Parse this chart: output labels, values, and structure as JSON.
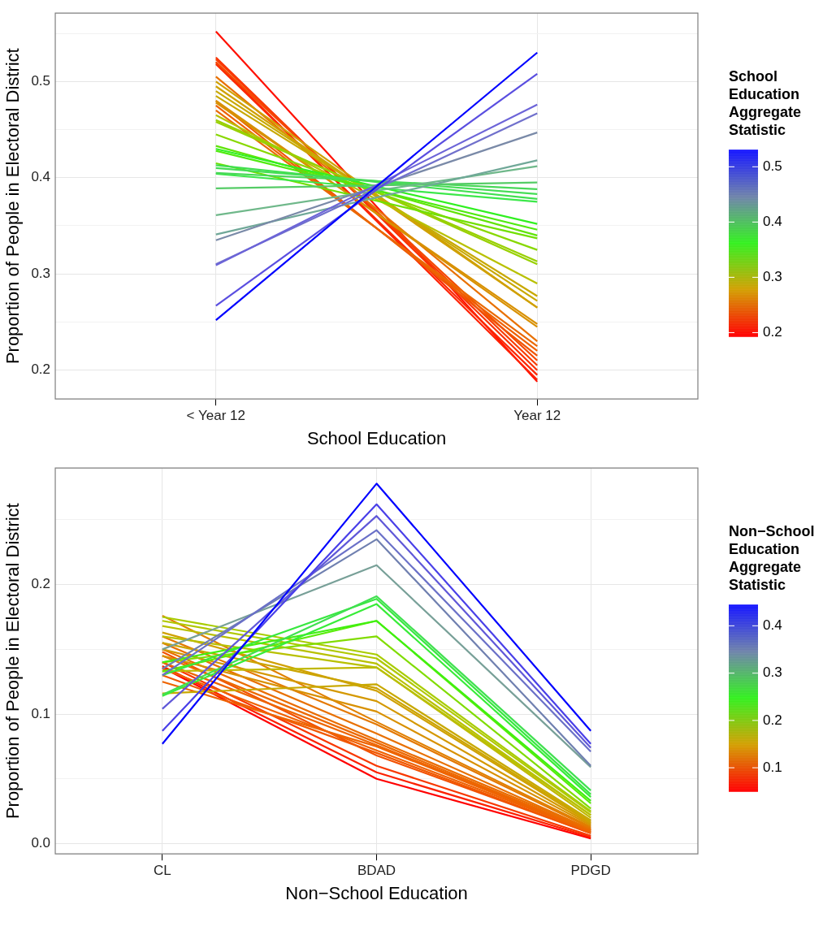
{
  "chart_data": [
    {
      "type": "line",
      "xlabel": "School Education",
      "ylabel": "Proportion of People in Electoral District",
      "clabel": "School Education Aggregate Statistic",
      "clim": [
        0.193,
        0.531
      ],
      "cticks": [
        0.2,
        0.3,
        0.4,
        0.5
      ],
      "categories": [
        "< Year 12",
        "Year 12"
      ],
      "ylim": [
        0.17,
        0.571
      ],
      "yticks": [
        0.2,
        {
          "value": 0.25,
          "label": null
        },
        0.3,
        {
          "value": 0.35,
          "label": null
        },
        0.4,
        {
          "value": 0.45,
          "label": null
        },
        0.5,
        {
          "value": 0.55,
          "label": null
        }
      ],
      "grid": true,
      "legend": false,
      "series": [
        {
          "color": "#0000ff",
          "values": [
            0.252,
            0.53
          ]
        },
        {
          "color": "#5a4ee0",
          "values": [
            0.267,
            0.508
          ]
        },
        {
          "color": "#6c64d8",
          "values": [
            0.309,
            0.476
          ]
        },
        {
          "color": "#7070cc",
          "values": [
            0.31,
            0.467
          ]
        },
        {
          "color": "#7a8aa8",
          "values": [
            0.335,
            0.447
          ]
        },
        {
          "color": "#70a898",
          "values": [
            0.341,
            0.418
          ]
        },
        {
          "color": "#6fb88a",
          "values": [
            0.361,
            0.412
          ]
        },
        {
          "color": "#55cc66",
          "values": [
            0.389,
            0.395
          ]
        },
        {
          "color": "#48d858",
          "values": [
            0.405,
            0.388
          ]
        },
        {
          "color": "#44dd55",
          "values": [
            0.41,
            0.383
          ]
        },
        {
          "color": "#40e050",
          "values": [
            0.413,
            0.378
          ]
        },
        {
          "color": "#3ce84a",
          "values": [
            0.404,
            0.375
          ]
        },
        {
          "color": "#30f020",
          "values": [
            0.43,
            0.352
          ]
        },
        {
          "color": "#50ea10",
          "values": [
            0.428,
            0.346
          ]
        },
        {
          "color": "#60e408",
          "values": [
            0.433,
            0.34
          ]
        },
        {
          "color": "#70e000",
          "values": [
            0.415,
            0.337
          ]
        },
        {
          "color": "#88d800",
          "values": [
            0.445,
            0.325
          ]
        },
        {
          "color": "#98d000",
          "values": [
            0.458,
            0.313
          ]
        },
        {
          "color": "#98d000",
          "values": [
            0.46,
            0.31
          ]
        },
        {
          "color": "#b8c000",
          "values": [
            0.465,
            0.29
          ]
        },
        {
          "color": "#c8a800",
          "values": [
            0.485,
            0.277
          ]
        },
        {
          "color": "#c8a800",
          "values": [
            0.49,
            0.272
          ]
        },
        {
          "color": "#d0a000",
          "values": [
            0.495,
            0.265
          ]
        },
        {
          "color": "#d0a000",
          "values": [
            0.5,
            0.265
          ]
        },
        {
          "color": "#d89000",
          "values": [
            0.478,
            0.248
          ]
        },
        {
          "color": "#d89000",
          "values": [
            0.48,
            0.245
          ]
        },
        {
          "color": "#e87000",
          "values": [
            0.505,
            0.23
          ]
        },
        {
          "color": "#ea6800",
          "values": [
            0.47,
            0.225
          ]
        },
        {
          "color": "#ee6000",
          "values": [
            0.475,
            0.22
          ]
        },
        {
          "color": "#f05400",
          "values": [
            0.48,
            0.215
          ]
        },
        {
          "color": "#f44800",
          "values": [
            0.52,
            0.21
          ]
        },
        {
          "color": "#f83c00",
          "values": [
            0.523,
            0.205
          ]
        },
        {
          "color": "#fa3000",
          "values": [
            0.525,
            0.2
          ]
        },
        {
          "color": "#fc2800",
          "values": [
            0.518,
            0.195
          ]
        },
        {
          "color": "#ff2000",
          "values": [
            0.52,
            0.19
          ]
        },
        {
          "color": "#ff1000",
          "values": [
            0.552,
            0.188
          ]
        }
      ]
    },
    {
      "type": "line",
      "xlabel": "Non−School Education",
      "ylabel": "Proportion of People in Electoral District",
      "clabel": "Non−School Education Aggregate Statistic",
      "clim": [
        0.05,
        0.445
      ],
      "cticks": [
        0.1,
        0.2,
        0.3,
        0.4
      ],
      "categories": [
        "CL",
        "BDAD",
        "PDGD"
      ],
      "ylim": [
        -0.008,
        0.29
      ],
      "yticks": [
        {
          "value": 0,
          "label": "0.0"
        },
        {
          "value": 0.05,
          "label": null
        },
        0.1,
        {
          "value": 0.15,
          "label": null
        },
        0.2,
        {
          "value": 0.25,
          "label": null
        }
      ],
      "grid": true,
      "legend": false,
      "series": [
        {
          "color": "#0000ff",
          "values": [
            0.077,
            0.278,
            0.087
          ]
        },
        {
          "color": "#4a40e8",
          "values": [
            0.087,
            0.262,
            0.077
          ]
        },
        {
          "color": "#6058d8",
          "values": [
            0.104,
            0.253,
            0.074
          ]
        },
        {
          "color": "#6a70c8",
          "values": [
            0.13,
            0.242,
            0.071
          ]
        },
        {
          "color": "#7080b0",
          "values": [
            0.135,
            0.235,
            0.06
          ]
        },
        {
          "color": "#78a098",
          "values": [
            0.15,
            0.215,
            0.059
          ]
        },
        {
          "color": "#40e050",
          "values": [
            0.115,
            0.191,
            0.041
          ]
        },
        {
          "color": "#38e840",
          "values": [
            0.13,
            0.189,
            0.038
          ]
        },
        {
          "color": "#38ec38",
          "values": [
            0.114,
            0.185,
            0.036
          ]
        },
        {
          "color": "#40f010",
          "values": [
            0.14,
            0.172,
            0.033
          ]
        },
        {
          "color": "#58ec08",
          "values": [
            0.133,
            0.172,
            0.031
          ]
        },
        {
          "color": "#80dc00",
          "values": [
            0.14,
            0.16,
            0.027
          ]
        },
        {
          "color": "#a8cc00",
          "values": [
            0.175,
            0.146,
            0.025
          ]
        },
        {
          "color": "#b0c800",
          "values": [
            0.172,
            0.143,
            0.024
          ]
        },
        {
          "color": "#b8c000",
          "values": [
            0.168,
            0.139,
            0.022
          ]
        },
        {
          "color": "#b8c000",
          "values": [
            0.16,
            0.136,
            0.022
          ]
        },
        {
          "color": "#c0b800",
          "values": [
            0.133,
            0.136,
            0.02
          ]
        },
        {
          "color": "#c8a800",
          "values": [
            0.116,
            0.123,
            0.018
          ]
        },
        {
          "color": "#cca400",
          "values": [
            0.155,
            0.12,
            0.017
          ]
        },
        {
          "color": "#d0a000",
          "values": [
            0.163,
            0.118,
            0.016
          ]
        },
        {
          "color": "#d49800",
          "values": [
            0.15,
            0.11,
            0.015
          ]
        },
        {
          "color": "#d89000",
          "values": [
            0.145,
            0.102,
            0.014
          ]
        },
        {
          "color": "#e08000",
          "values": [
            0.176,
            0.094,
            0.013
          ]
        },
        {
          "color": "#e47800",
          "values": [
            0.16,
            0.092,
            0.012
          ]
        },
        {
          "color": "#e87000",
          "values": [
            0.155,
            0.085,
            0.011
          ]
        },
        {
          "color": "#ea6c00",
          "values": [
            0.15,
            0.08,
            0.011
          ]
        },
        {
          "color": "#ec6800",
          "values": [
            0.145,
            0.078,
            0.01
          ]
        },
        {
          "color": "#ee6400",
          "values": [
            0.14,
            0.076,
            0.01
          ]
        },
        {
          "color": "#ee6400",
          "values": [
            0.125,
            0.075,
            0.009
          ]
        },
        {
          "color": "#f06000",
          "values": [
            0.135,
            0.072,
            0.009
          ]
        },
        {
          "color": "#f05800",
          "values": [
            0.13,
            0.07,
            0.008
          ]
        },
        {
          "color": "#f25000",
          "values": [
            0.148,
            0.068,
            0.008
          ]
        },
        {
          "color": "#f83800",
          "values": [
            0.14,
            0.06,
            0.006
          ]
        },
        {
          "color": "#fc2000",
          "values": [
            0.137,
            0.055,
            0.005
          ]
        },
        {
          "color": "#ff0000",
          "values": [
            0.136,
            0.05,
            0.004
          ]
        }
      ]
    }
  ]
}
